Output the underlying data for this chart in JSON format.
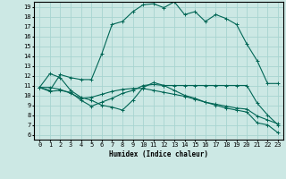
{
  "bg_color": "#cce8e4",
  "grid_color": "#a8d4d0",
  "line_color": "#006655",
  "xlabel": "Humidex (Indice chaleur)",
  "xlim": [
    -0.5,
    23.5
  ],
  "ylim": [
    5.5,
    19.5
  ],
  "xticks": [
    0,
    1,
    2,
    3,
    4,
    5,
    6,
    7,
    8,
    9,
    10,
    11,
    12,
    13,
    14,
    15,
    16,
    17,
    18,
    19,
    20,
    21,
    22,
    23
  ],
  "yticks": [
    6,
    7,
    8,
    9,
    10,
    11,
    12,
    13,
    14,
    15,
    16,
    17,
    18,
    19
  ],
  "series": [
    [
      10.8,
      12.2,
      11.8,
      10.5,
      9.8,
      9.5,
      9.0,
      8.8,
      8.5,
      9.5,
      10.8,
      11.3,
      11.0,
      10.5,
      10.0,
      9.7,
      9.3,
      9.0,
      8.7,
      8.5,
      8.3,
      7.2,
      7.0,
      6.2
    ],
    [
      10.8,
      10.4,
      10.5,
      10.3,
      9.5,
      8.9,
      9.3,
      9.7,
      10.2,
      10.5,
      11.0,
      11.1,
      11.0,
      11.0,
      11.0,
      11.0,
      11.0,
      11.0,
      11.0,
      11.0,
      11.0,
      9.2,
      8.0,
      7.0
    ],
    [
      10.8,
      10.8,
      10.6,
      10.2,
      9.7,
      9.8,
      10.1,
      10.4,
      10.6,
      10.7,
      10.7,
      10.5,
      10.3,
      10.1,
      9.9,
      9.6,
      9.3,
      9.1,
      8.9,
      8.7,
      8.6,
      7.9,
      7.5,
      7.1
    ],
    [
      10.8,
      10.5,
      12.1,
      11.8,
      11.6,
      11.6,
      14.2,
      17.2,
      17.5,
      18.5,
      19.2,
      19.3,
      18.9,
      19.5,
      18.2,
      18.5,
      17.5,
      18.2,
      17.8,
      17.2,
      15.2,
      13.5,
      11.2,
      11.2
    ]
  ]
}
